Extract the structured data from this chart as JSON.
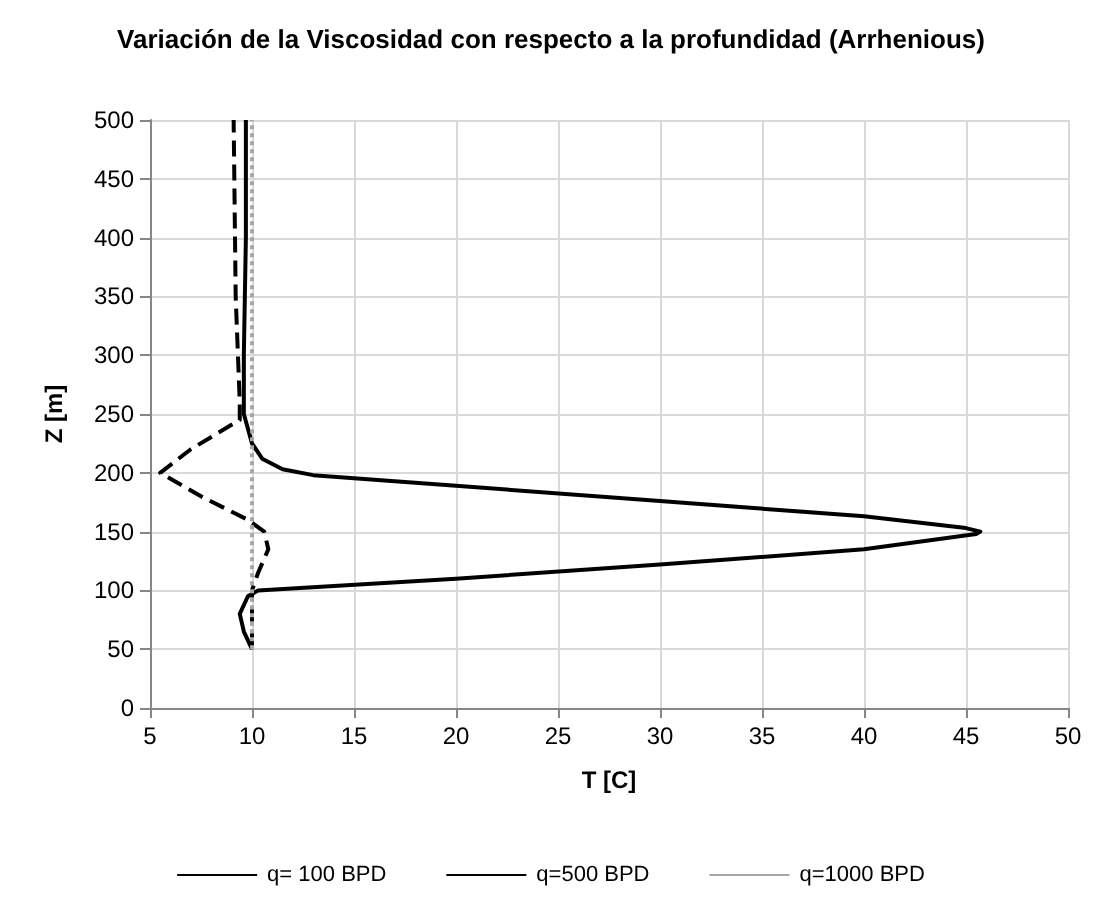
{
  "chart_data": {
    "type": "line",
    "title": "Variación de la Viscosidad con respecto a la profundidad (Arrhenious)",
    "xlabel": "T [C]",
    "ylabel": "Z [m]",
    "xlim": [
      5,
      50
    ],
    "xticks": [
      5,
      10,
      15,
      20,
      25,
      30,
      35,
      40,
      45,
      50
    ],
    "ylim": [
      0,
      500
    ],
    "yticks": [
      0,
      50,
      100,
      150,
      200,
      250,
      300,
      350,
      400,
      450,
      500
    ],
    "grid": true,
    "legend": "bottom",
    "marker": "none",
    "series": [
      {
        "name": "q= 100 BPD",
        "color": "#000000",
        "line_style": "dashed",
        "x": [
          10,
          10,
          10.3,
          10.8,
          10.6,
          9.8,
          7.5,
          5.5,
          7,
          9.4,
          9.4,
          9.2,
          9.1
        ],
        "values": [
          50,
          100,
          115,
          135,
          150,
          160,
          180,
          200,
          220,
          245,
          260,
          350,
          500
        ]
      },
      {
        "name": "q=500 BPD",
        "color": "#000000",
        "line_style": "solid",
        "x": [
          10,
          9.6,
          9.4,
          9.8,
          10.3,
          20,
          30,
          40,
          45.5,
          45.7,
          45,
          40,
          30,
          20,
          13,
          11.5,
          10.5,
          10,
          9.6,
          9.6,
          9.7,
          9.7
        ],
        "values": [
          50,
          65,
          80,
          95,
          100,
          110,
          122,
          135,
          148,
          150,
          153,
          163,
          176,
          189,
          198,
          203,
          212,
          225,
          250,
          300,
          400,
          500
        ]
      },
      {
        "name": "q=1000 BPD",
        "color": "#a6a6a6",
        "line_style": "dotted",
        "x": [
          10,
          10
        ],
        "values": [
          50,
          500
        ]
      }
    ]
  }
}
